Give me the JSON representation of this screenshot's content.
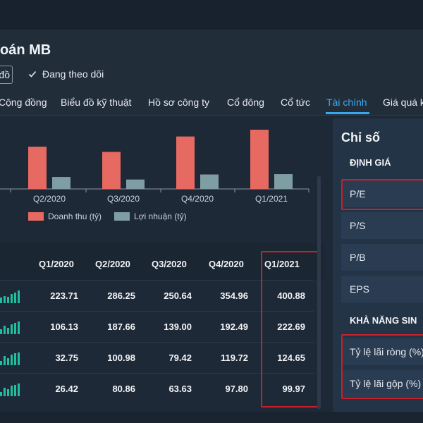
{
  "header": {
    "title": "oán MB",
    "left_button_label": "đồ",
    "follow_label": "Đang theo dõi"
  },
  "tabs": [
    {
      "label": "Cộng đồng"
    },
    {
      "label": "Biểu đồ kỹ thuật"
    },
    {
      "label": "Hồ sơ công ty"
    },
    {
      "label": "Cổ đông"
    },
    {
      "label": "Cổ tức"
    },
    {
      "label": "Tài chính"
    },
    {
      "label": "Giá quá k"
    }
  ],
  "active_tab": "Tài chính",
  "chart_data": {
    "type": "bar",
    "categories": [
      "Q2/2020",
      "Q3/2020",
      "Q4/2020",
      "Q1/2021"
    ],
    "series": [
      {
        "name": "Doanh thu (tỷ)",
        "values": [
          286.25,
          250.64,
          354.96,
          400.88
        ],
        "color": "#e66a61"
      },
      {
        "name": "Lợi nhuận (tỷ)",
        "values": [
          80.86,
          63.63,
          97.8,
          99.97
        ],
        "color": "#7e9ea3"
      }
    ],
    "legend": "bottom"
  },
  "table": {
    "columns": [
      "Q1/2020",
      "Q2/2020",
      "Q3/2020",
      "Q4/2020",
      "Q1/2021"
    ],
    "rows": [
      [
        "223.71",
        "286.25",
        "250.64",
        "354.96",
        "400.88"
      ],
      [
        "106.13",
        "187.66",
        "139.00",
        "192.49",
        "222.69"
      ],
      [
        "32.75",
        "100.98",
        "79.42",
        "119.72",
        "124.65"
      ],
      [
        "26.42",
        "80.86",
        "63.63",
        "97.80",
        "99.97"
      ]
    ]
  },
  "right_panel": {
    "title": "Chỉ số",
    "section1": "ĐỊNH GIÁ",
    "items1": [
      "P/E",
      "P/S",
      "P/B",
      "EPS"
    ],
    "section2": "KHẢ NĂNG SIN",
    "items2": [
      "Tỷ lệ lãi ròng (%)",
      "Tỷ lệ lãi gộp (%)"
    ]
  },
  "colors": {
    "accent": "#38a9f0",
    "highlight_box": "#c8202b",
    "bar_revenue": "#e66a61",
    "bar_profit": "#7e9ea3",
    "spark": "#1fbf9f"
  }
}
